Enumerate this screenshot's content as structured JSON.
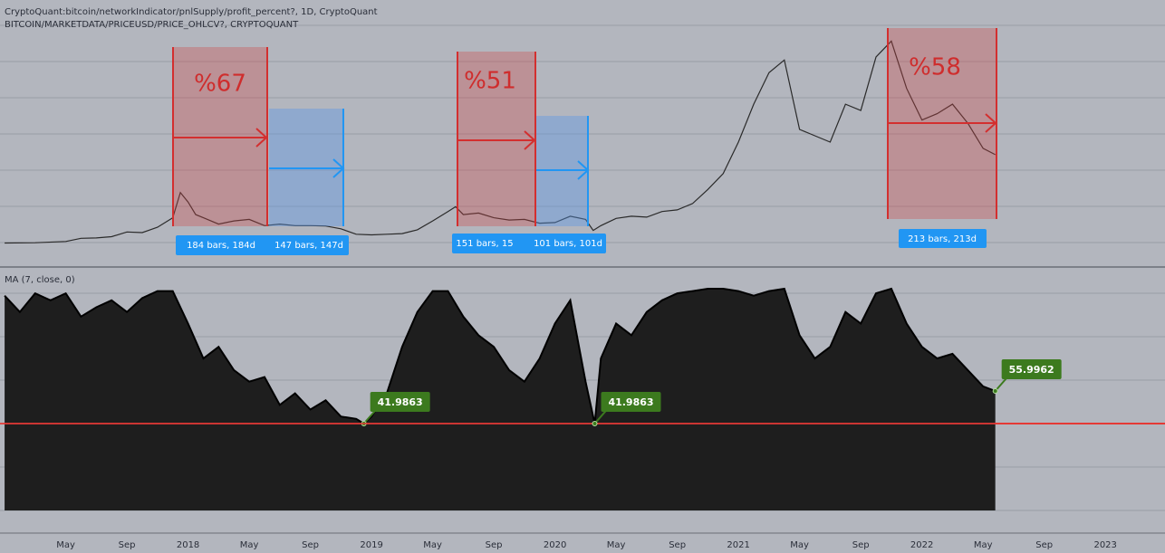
{
  "header": {
    "line1": "CryptoQuant:bitcoin/networkIndicator/pnlSupply/profit_percent?, 1D, CryptoQuant",
    "line2": "BITCOIN/MARKETDATA/PRICEUSD/PRICE_OHLCV?, CRYPTOQUANT"
  },
  "annotations": {
    "drawdowns": [
      "%67",
      "%51",
      "%58"
    ],
    "durations": [
      "184 bars, 184d",
      "147 bars, 147d",
      "151 bars, 15",
      "101 bars, 101d",
      "213 bars, 213d"
    ]
  },
  "chart_data": [
    {
      "type": "line",
      "series": [
        {
          "name": "BITCOIN/MARKETDATA/PRICEUSD/PRICE_OHLCV?",
          "color": "#2a2a2a",
          "x": [
            0,
            2,
            4,
            5,
            6,
            7,
            8,
            9,
            10,
            11,
            11.5,
            12,
            12.5,
            13,
            14,
            15,
            16,
            17,
            18,
            19,
            20,
            21,
            22,
            23,
            24,
            25,
            26,
            27,
            28,
            29,
            29.5,
            30,
            31,
            32,
            33,
            34,
            35,
            36,
            37,
            38,
            38.5,
            39,
            40,
            41,
            42,
            43,
            44,
            45,
            46,
            47,
            48,
            49,
            50,
            51,
            52,
            53,
            54,
            55,
            56,
            57,
            58,
            59,
            60,
            61,
            62,
            63,
            64,
            64.8
          ],
          "values": [
            1000,
            1100,
            1500,
            2500,
            2600,
            3000,
            4500,
            4300,
            6000,
            9000,
            17000,
            14000,
            10000,
            9000,
            7000,
            8000,
            8500,
            6500,
            7000,
            6500,
            6500,
            6400,
            5500,
            3800,
            3600,
            3800,
            4000,
            5200,
            8000,
            11000,
            12500,
            10000,
            10500,
            9000,
            8300,
            8500,
            7300,
            7500,
            9500,
            8500,
            5000,
            6500,
            8800,
            9500,
            9200,
            11000,
            11500,
            13500,
            18000,
            23000,
            33000,
            45000,
            55000,
            59000,
            37000,
            35000,
            33000,
            45000,
            43000,
            60000,
            65000,
            50000,
            40000,
            42000,
            45000,
            39000,
            31000,
            29000
          ]
        }
      ],
      "xlim": [
        -0.3,
        75.9
      ],
      "ylim": [
        0,
        70000
      ]
    },
    {
      "type": "area",
      "title": "MA (7, close, 0)",
      "series": [
        {
          "name": "MA (7, close, 0)",
          "color": "#1e1e1e",
          "x": [
            0,
            1,
            2,
            3,
            4,
            5,
            6,
            7,
            8,
            9,
            10,
            11,
            12,
            13,
            14,
            15,
            16,
            17,
            18,
            19,
            20,
            21,
            22,
            23,
            23.5,
            24,
            25,
            26,
            27,
            28,
            29,
            30,
            31,
            32,
            33,
            34,
            35,
            36,
            37,
            38,
            38.6,
            39,
            40,
            41,
            42,
            43,
            44,
            45,
            46,
            47,
            48,
            49,
            50,
            51,
            52,
            53,
            54,
            55,
            56,
            57,
            58,
            59,
            60,
            61,
            62,
            63,
            64,
            64.8
          ],
          "values": [
            97,
            90,
            98,
            95,
            98,
            88,
            92,
            95,
            90,
            96,
            99,
            99,
            85,
            70,
            75,
            65,
            60,
            62,
            50,
            55,
            48,
            52,
            45,
            44,
            41.9863,
            45,
            55,
            75,
            90,
            99,
            99,
            88,
            80,
            75,
            65,
            60,
            70,
            85,
            95,
            60,
            41.9863,
            70,
            85,
            80,
            90,
            95,
            98,
            99,
            100,
            100,
            99,
            97,
            99,
            100,
            80,
            70,
            75,
            90,
            85,
            98,
            100,
            85,
            75,
            70,
            72,
            65,
            58,
            55.9962
          ],
          "value_labels": [
            null,
            null,
            null,
            null,
            null,
            null,
            null,
            null,
            null,
            null,
            null,
            null,
            null,
            null,
            null,
            null,
            null,
            null,
            null,
            null,
            null,
            null,
            null,
            null,
            "41.9863",
            null,
            null,
            null,
            null,
            null,
            null,
            null,
            null,
            null,
            null,
            null,
            null,
            null,
            null,
            null,
            "41.9863",
            null,
            null,
            null,
            null,
            null,
            null,
            null,
            null,
            null,
            null,
            null,
            null,
            null,
            null,
            null,
            null,
            null,
            null,
            null,
            null,
            null,
            null,
            null,
            null,
            null,
            null,
            "55.9962"
          ]
        }
      ],
      "level_color": "#e53935",
      "xlim": [
        -0.3,
        75.9
      ],
      "ylim": [
        4.6,
        100
      ],
      "xticks": [
        {
          "value": 4,
          "label": "May"
        },
        {
          "value": 8,
          "label": "Sep"
        },
        {
          "value": 12,
          "label": "2018"
        },
        {
          "value": 16,
          "label": "May"
        },
        {
          "value": 20,
          "label": "Sep"
        },
        {
          "value": 24,
          "label": "2019"
        },
        {
          "value": 28,
          "label": "May"
        },
        {
          "value": 32,
          "label": "Sep"
        },
        {
          "value": 36,
          "label": "2020"
        },
        {
          "value": 40,
          "label": "May"
        },
        {
          "value": 44,
          "label": "Sep"
        },
        {
          "value": 48,
          "label": "2021"
        },
        {
          "value": 52,
          "label": "May"
        },
        {
          "value": 56,
          "label": "Sep"
        },
        {
          "value": 60,
          "label": "2022"
        },
        {
          "value": 64,
          "label": "May"
        },
        {
          "value": 68,
          "label": "Sep"
        },
        {
          "value": 72,
          "label": "2023"
        }
      ]
    }
  ]
}
